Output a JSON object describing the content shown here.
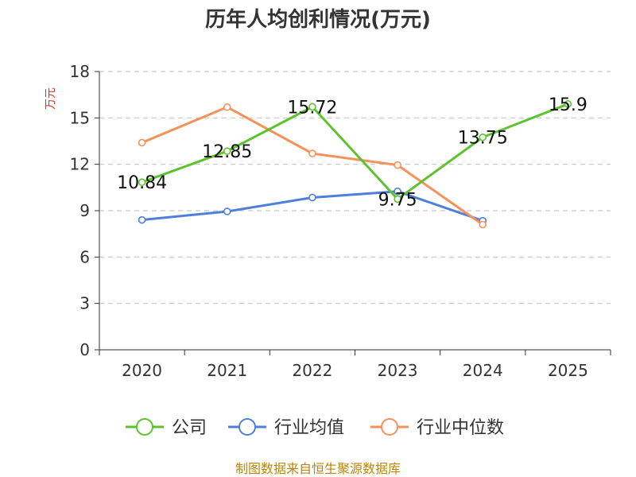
{
  "chart_data": {
    "type": "line",
    "title": "历年人均创利情况(万元)",
    "xlabel": "",
    "ylabel": "万元",
    "categories": [
      "2020",
      "2021",
      "2022",
      "2023",
      "2024",
      "2025"
    ],
    "ylim": [
      0,
      18
    ],
    "yticks": [
      0,
      3,
      6,
      9,
      12,
      15,
      18
    ],
    "grid": true,
    "legend_position": "bottom",
    "series": [
      {
        "name": "公司",
        "color": "#5cc32d",
        "values": [
          10.84,
          12.85,
          15.72,
          9.75,
          13.75,
          15.9
        ],
        "labels": [
          "10.84",
          "12.85",
          "15.72",
          "9.75",
          "13.75",
          "15.9"
        ]
      },
      {
        "name": "行业均值",
        "color": "#4e7fd9",
        "values": [
          8.4,
          8.95,
          9.85,
          10.25,
          8.35,
          null
        ]
      },
      {
        "name": "行业中位数",
        "color": "#f5915a",
        "values": [
          13.4,
          15.7,
          12.7,
          11.95,
          8.1,
          null
        ]
      }
    ]
  },
  "source_note": "制图数据来自恒生聚源数据库"
}
